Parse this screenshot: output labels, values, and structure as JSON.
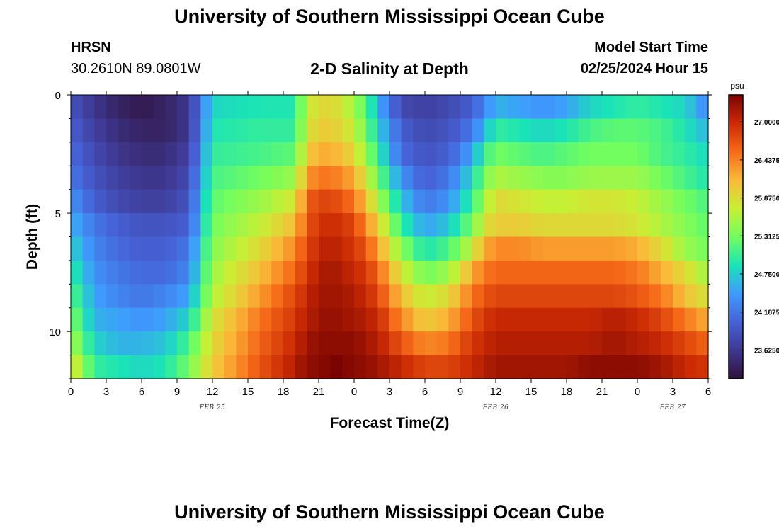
{
  "header": {
    "title": "University of Southern Mississippi Ocean Cube",
    "station": "HRSN",
    "coordinates": "30.2610N  89.0801W",
    "subtitle": "2-D Salinity at Depth",
    "model_start_label": "Model Start Time",
    "model_start_value": "02/25/2024 Hour 15"
  },
  "footer": {
    "title": "University of Southern Mississippi Ocean Cube"
  },
  "colors": {
    "scale": [
      "#30123b",
      "#3e3891",
      "#4662d7",
      "#3e9bfe",
      "#1ae4b6",
      "#72fe5e",
      "#c8ef34",
      "#faba39",
      "#f66b19",
      "#cb2a04",
      "#7a0403"
    ]
  },
  "chart_data": {
    "type": "heatmap",
    "title": "2-D Salinity at Depth",
    "xlabel": "Forecast Time(Z)",
    "ylabel": "Depth (ft)",
    "x_tick_labels": [
      "0",
      "3",
      "6",
      "9",
      "12",
      "15",
      "18",
      "21",
      "0",
      "3",
      "6",
      "9",
      "12",
      "15",
      "18",
      "21",
      "0",
      "3",
      "6"
    ],
    "x_hours": [
      0,
      3,
      6,
      9,
      12,
      15,
      18,
      21,
      24,
      27,
      30,
      33,
      36,
      39,
      42,
      45,
      48,
      51,
      54
    ],
    "xlim": [
      0,
      54
    ],
    "date_labels": [
      {
        "text": "FEB 25",
        "hour": 12
      },
      {
        "text": "FEB 26",
        "hour": 36
      },
      {
        "text": "FEB 27",
        "hour": 51
      }
    ],
    "y_tick_labels": [
      "0",
      "5",
      "10"
    ],
    "y_ticks": [
      0,
      5,
      10
    ],
    "ylim": [
      0,
      12
    ],
    "depth_levels_ft": [
      0.5,
      1.5,
      2.5,
      3.5,
      4.5,
      5.5,
      6.5,
      7.5,
      8.5,
      9.5,
      10.5,
      11.5
    ],
    "time_step_hours": 1,
    "colorbar": {
      "units": "psu",
      "vmin": 23.2,
      "vmax": 27.4,
      "tick_values": [
        27.0,
        26.4375,
        25.875,
        25.3125,
        24.75,
        24.1875,
        23.625
      ],
      "tick_labels": [
        "27.0000",
        "26.4375",
        "25.8750",
        "25.3125",
        "24.7500",
        "24.1875",
        "23.6250"
      ]
    },
    "profiles_by_depth": [
      {
        "depth": 0.5,
        "t": [
          0,
          2,
          4,
          6,
          8,
          10,
          12,
          16,
          19,
          20,
          21,
          22,
          23,
          24,
          25,
          26,
          28,
          30,
          32,
          34,
          35,
          36,
          38,
          40,
          42,
          44,
          46,
          48,
          50,
          52,
          54
        ],
        "v": [
          23.9,
          23.6,
          23.4,
          23.3,
          23.4,
          23.6,
          24.8,
          24.9,
          24.9,
          25.7,
          25.9,
          25.9,
          25.8,
          25.5,
          25.2,
          24.6,
          23.8,
          23.7,
          23.8,
          24.0,
          24.3,
          24.6,
          24.5,
          24.4,
          24.5,
          24.8,
          24.9,
          25.0,
          24.9,
          24.8,
          24.3
        ]
      },
      {
        "depth": 1.5,
        "t": [
          0,
          2,
          4,
          6,
          8,
          10,
          12,
          16,
          19,
          20,
          21,
          22,
          23,
          24,
          25,
          26,
          28,
          30,
          32,
          34,
          35,
          36,
          38,
          40,
          42,
          44,
          46,
          48,
          50,
          52,
          54
        ],
        "v": [
          24.0,
          23.7,
          23.5,
          23.4,
          23.4,
          23.6,
          24.9,
          25.0,
          25.0,
          25.8,
          26.0,
          26.0,
          25.9,
          25.7,
          25.3,
          24.8,
          24.0,
          23.8,
          23.9,
          24.2,
          24.6,
          25.0,
          24.9,
          24.8,
          24.9,
          25.1,
          25.2,
          25.2,
          25.1,
          24.9,
          24.6
        ]
      },
      {
        "depth": 2.5,
        "t": [
          0,
          2,
          4,
          6,
          8,
          10,
          12,
          16,
          19,
          20,
          21,
          22,
          23,
          24,
          25,
          26,
          28,
          30,
          32,
          34,
          35,
          36,
          38,
          40,
          42,
          44,
          46,
          48,
          50,
          52,
          54
        ],
        "v": [
          24.1,
          23.8,
          23.6,
          23.5,
          23.5,
          23.7,
          25.0,
          25.1,
          25.2,
          26.0,
          26.2,
          26.2,
          26.1,
          25.9,
          25.5,
          25.0,
          24.1,
          23.9,
          24.0,
          24.5,
          25.0,
          25.3,
          25.2,
          25.1,
          25.2,
          25.3,
          25.3,
          25.3,
          25.1,
          25.0,
          24.8
        ]
      },
      {
        "depth": 3.5,
        "t": [
          0,
          2,
          4,
          6,
          8,
          10,
          12,
          16,
          19,
          20,
          21,
          22,
          23,
          24,
          25,
          26,
          28,
          30,
          32,
          34,
          35,
          36,
          38,
          40,
          42,
          44,
          46,
          48,
          50,
          52,
          54
        ],
        "v": [
          24.2,
          23.9,
          23.7,
          23.6,
          23.6,
          23.8,
          25.1,
          25.3,
          25.5,
          26.3,
          26.5,
          26.5,
          26.4,
          26.2,
          25.8,
          25.3,
          24.4,
          24.0,
          24.2,
          24.8,
          25.3,
          25.6,
          25.5,
          25.4,
          25.4,
          25.5,
          25.5,
          25.5,
          25.3,
          25.1,
          24.9
        ]
      },
      {
        "depth": 4.5,
        "t": [
          0,
          2,
          4,
          6,
          8,
          10,
          12,
          16,
          19,
          20,
          21,
          22,
          23,
          24,
          25,
          26,
          28,
          30,
          32,
          34,
          35,
          36,
          38,
          40,
          42,
          44,
          46,
          48,
          50,
          52,
          54
        ],
        "v": [
          24.4,
          24.0,
          23.8,
          23.7,
          23.7,
          23.9,
          25.2,
          25.5,
          25.8,
          26.6,
          26.8,
          26.8,
          26.7,
          26.5,
          26.1,
          25.6,
          24.7,
          24.2,
          24.4,
          25.0,
          25.5,
          25.9,
          25.8,
          25.7,
          25.7,
          25.8,
          25.8,
          25.7,
          25.5,
          25.3,
          25.1
        ]
      },
      {
        "depth": 5.5,
        "t": [
          0,
          2,
          4,
          6,
          8,
          10,
          12,
          16,
          19,
          20,
          21,
          22,
          23,
          24,
          25,
          26,
          28,
          30,
          32,
          34,
          35,
          36,
          38,
          40,
          42,
          44,
          46,
          48,
          50,
          52,
          54
        ],
        "v": [
          24.6,
          24.2,
          24.0,
          23.9,
          23.9,
          24.0,
          25.3,
          25.7,
          26.1,
          26.7,
          26.9,
          27.0,
          26.9,
          26.8,
          26.4,
          26.0,
          25.0,
          24.5,
          24.7,
          25.3,
          25.8,
          26.0,
          26.0,
          25.9,
          25.9,
          25.9,
          25.9,
          25.8,
          25.6,
          25.4,
          25.2
        ]
      },
      {
        "depth": 6.5,
        "t": [
          0,
          2,
          4,
          6,
          8,
          10,
          12,
          16,
          19,
          20,
          21,
          22,
          23,
          24,
          25,
          26,
          28,
          30,
          32,
          34,
          35,
          36,
          38,
          40,
          42,
          44,
          46,
          48,
          50,
          52,
          54
        ],
        "v": [
          24.8,
          24.3,
          24.1,
          24.0,
          24.0,
          24.2,
          25.4,
          25.9,
          26.4,
          26.8,
          27.0,
          27.1,
          27.0,
          26.9,
          26.7,
          26.3,
          25.4,
          24.9,
          25.1,
          25.7,
          26.2,
          26.4,
          26.4,
          26.3,
          26.3,
          26.3,
          26.3,
          26.2,
          25.9,
          25.5,
          25.3
        ]
      },
      {
        "depth": 7.5,
        "t": [
          0,
          2,
          4,
          6,
          8,
          10,
          12,
          16,
          19,
          20,
          21,
          22,
          23,
          24,
          25,
          26,
          28,
          30,
          32,
          34,
          35,
          36,
          38,
          40,
          42,
          44,
          46,
          48,
          50,
          52,
          54
        ],
        "v": [
          25.0,
          24.4,
          24.2,
          24.1,
          24.1,
          24.3,
          25.5,
          26.1,
          26.6,
          26.9,
          27.1,
          27.2,
          27.1,
          27.0,
          26.9,
          26.6,
          25.8,
          25.3,
          25.5,
          26.2,
          26.5,
          26.6,
          26.6,
          26.6,
          26.6,
          26.6,
          26.6,
          26.5,
          26.2,
          25.9,
          25.5
        ]
      },
      {
        "depth": 8.5,
        "t": [
          0,
          2,
          4,
          6,
          8,
          10,
          12,
          16,
          19,
          20,
          21,
          22,
          23,
          24,
          25,
          26,
          28,
          30,
          32,
          34,
          35,
          36,
          38,
          40,
          42,
          44,
          46,
          48,
          50,
          52,
          54
        ],
        "v": [
          25.2,
          24.5,
          24.3,
          24.2,
          24.3,
          24.5,
          25.6,
          26.3,
          26.8,
          27.0,
          27.2,
          27.2,
          27.2,
          27.1,
          27.0,
          26.8,
          26.1,
          25.7,
          25.9,
          26.5,
          26.7,
          26.8,
          26.8,
          26.8,
          26.8,
          26.8,
          26.8,
          26.7,
          26.5,
          26.1,
          25.8
        ]
      },
      {
        "depth": 9.5,
        "t": [
          0,
          2,
          4,
          6,
          8,
          10,
          12,
          16,
          19,
          20,
          21,
          22,
          23,
          24,
          25,
          26,
          28,
          30,
          32,
          34,
          35,
          36,
          38,
          40,
          42,
          44,
          46,
          48,
          50,
          52,
          54
        ],
        "v": [
          25.4,
          24.6,
          24.5,
          24.4,
          24.5,
          24.8,
          25.8,
          26.5,
          26.9,
          27.1,
          27.2,
          27.3,
          27.2,
          27.2,
          27.1,
          27.0,
          26.4,
          26.0,
          26.2,
          26.7,
          26.9,
          27.0,
          27.0,
          27.0,
          27.0,
          27.0,
          27.1,
          27.0,
          26.8,
          26.5,
          26.2
        ]
      },
      {
        "depth": 10.5,
        "t": [
          0,
          2,
          4,
          6,
          8,
          10,
          12,
          16,
          19,
          20,
          21,
          22,
          23,
          24,
          25,
          26,
          28,
          30,
          32,
          34,
          35,
          36,
          38,
          40,
          42,
          44,
          46,
          48,
          50,
          52,
          54
        ],
        "v": [
          25.6,
          24.8,
          24.6,
          24.6,
          24.7,
          25.1,
          25.9,
          26.6,
          27.0,
          27.2,
          27.3,
          27.3,
          27.3,
          27.3,
          27.2,
          27.1,
          26.7,
          26.4,
          26.5,
          26.9,
          27.0,
          27.1,
          27.1,
          27.1,
          27.1,
          27.1,
          27.2,
          27.1,
          27.0,
          26.8,
          26.6
        ]
      },
      {
        "depth": 11.5,
        "t": [
          0,
          2,
          4,
          6,
          8,
          10,
          12,
          16,
          19,
          20,
          21,
          22,
          23,
          24,
          25,
          26,
          28,
          30,
          32,
          34,
          35,
          36,
          38,
          40,
          42,
          44,
          46,
          48,
          50,
          52,
          54
        ],
        "v": [
          25.9,
          25.0,
          24.9,
          24.8,
          24.9,
          25.3,
          26.0,
          26.7,
          27.1,
          27.3,
          27.3,
          27.4,
          27.4,
          27.3,
          27.3,
          27.2,
          27.0,
          26.8,
          26.8,
          27.0,
          27.1,
          27.2,
          27.2,
          27.2,
          27.2,
          27.3,
          27.3,
          27.3,
          27.2,
          27.0,
          26.9
        ]
      }
    ]
  }
}
